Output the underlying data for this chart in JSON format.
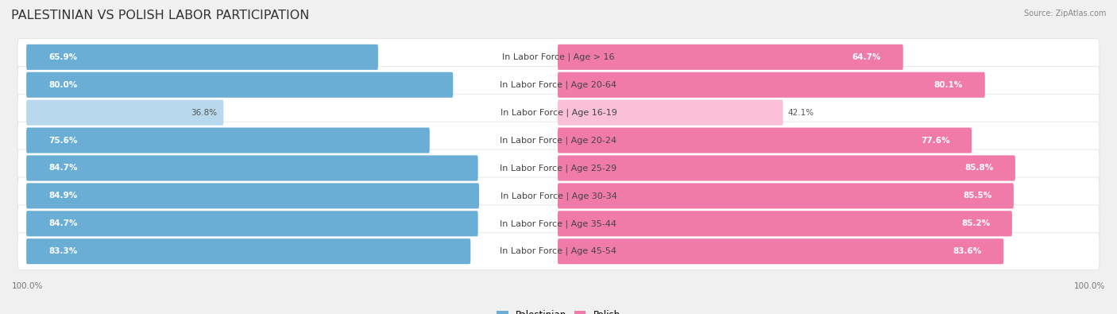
{
  "title": "PALESTINIAN VS POLISH LABOR PARTICIPATION",
  "source": "Source: ZipAtlas.com",
  "categories": [
    "In Labor Force | Age > 16",
    "In Labor Force | Age 20-64",
    "In Labor Force | Age 16-19",
    "In Labor Force | Age 20-24",
    "In Labor Force | Age 25-29",
    "In Labor Force | Age 30-34",
    "In Labor Force | Age 35-44",
    "In Labor Force | Age 45-54"
  ],
  "palestinian_values": [
    65.9,
    80.0,
    36.8,
    75.6,
    84.7,
    84.9,
    84.7,
    83.3
  ],
  "polish_values": [
    64.7,
    80.1,
    42.1,
    77.6,
    85.8,
    85.5,
    85.2,
    83.6
  ],
  "palestinian_color_strong": "#6aaed6",
  "palestinian_color_light": "#b8d8ee",
  "polish_color_strong": "#f07aaa",
  "polish_color_light": "#f9c0d8",
  "background_color": "#f0f0f0",
  "row_bg_color": "#ffffff",
  "max_value": 100.0,
  "bar_height": 0.62,
  "title_fontsize": 11.5,
  "label_fontsize": 8,
  "value_fontsize": 7.5,
  "legend_fontsize": 8.5,
  "axis_label_fontsize": 7.5,
  "light_threshold": 50
}
